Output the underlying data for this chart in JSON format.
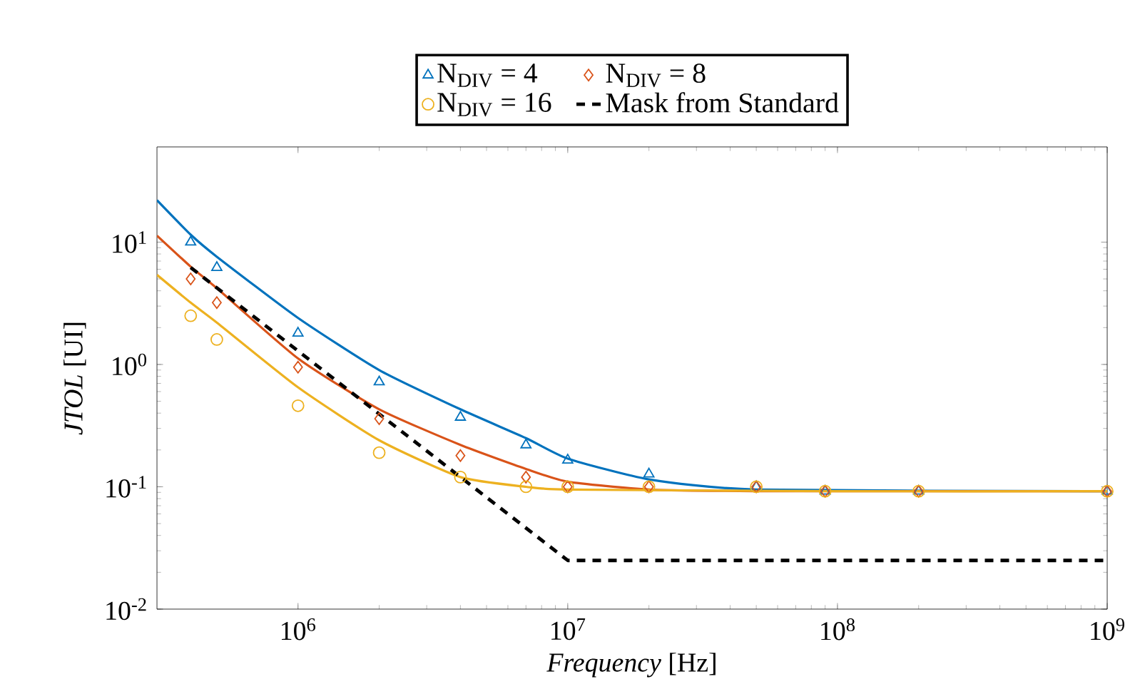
{
  "chart_data": {
    "type": "line",
    "xlabel": "*Frequency* [Hz]",
    "ylabel": "*JTOL* [UI]",
    "log": "xy",
    "legend": "top",
    "grid": false,
    "xlim": [
      300000,
      1000000000
    ],
    "ylim": [
      0.01,
      60
    ],
    "xticks": [
      {
        "value": 1000000,
        "label": "10$^{6}$"
      },
      {
        "value": 10000000,
        "label": "10$^{7}$"
      },
      {
        "value": 100000000,
        "label": "10$^{8}$"
      },
      {
        "value": 1000000000,
        "label": "10$^{9}$"
      }
    ],
    "yticks": [
      {
        "value": 0.01,
        "label": "10$^{-2}$"
      },
      {
        "value": 0.1,
        "label": "10$^{-1}$"
      },
      {
        "value": 1,
        "label": "10$^{0}$"
      },
      {
        "value": 10,
        "label": "10$^{1}$"
      }
    ],
    "series": [
      {
        "type": "scatter",
        "name": "N$_{DIV}$ = 4",
        "color": "#0072bd",
        "marker": "triangle",
        "x": [
          400000,
          500000,
          1000000,
          2000000,
          4000000,
          7000000,
          10000000,
          20000000,
          50000000,
          90000000,
          200000000,
          1000000000
        ],
        "values": [
          10,
          6.2,
          1.8,
          0.72,
          0.37,
          0.22,
          0.165,
          0.127,
          0.1,
          0.092,
          0.092,
          0.092
        ]
      },
      {
        "type": "scatter",
        "name": "N$_{DIV}$ = 8",
        "color": "#d95319",
        "marker": "diamond",
        "x": [
          400000,
          500000,
          1000000,
          2000000,
          4000000,
          7000000,
          10000000,
          20000000,
          50000000,
          90000000,
          200000000,
          1000000000
        ],
        "values": [
          5.0,
          3.2,
          0.95,
          0.36,
          0.18,
          0.12,
          0.1,
          0.1,
          0.1,
          0.092,
          0.092,
          0.092
        ]
      },
      {
        "type": "scatter",
        "name": "N$_{DIV}$ = 16",
        "color": "#edb120",
        "marker": "circle",
        "x": [
          400000,
          500000,
          1000000,
          2000000,
          4000000,
          7000000,
          10000000,
          20000000,
          50000000,
          90000000,
          200000000,
          1000000000
        ],
        "values": [
          2.5,
          1.6,
          0.46,
          0.19,
          0.12,
          0.1,
          0.1,
          0.1,
          0.1,
          0.092,
          0.092,
          0.092
        ]
      },
      {
        "type": "line",
        "color": "#0072bd",
        "line_style": "solid",
        "x": [
          300000,
          400000,
          500000,
          1000000,
          2000000,
          4000000,
          7000000,
          10000000,
          20000000,
          50000000,
          100000000,
          1000000000
        ],
        "values": [
          22,
          11.5,
          7.6,
          2.4,
          0.9,
          0.43,
          0.25,
          0.17,
          0.115,
          0.095,
          null,
          0.092
        ]
      },
      {
        "type": "line",
        "color": "#d95319",
        "line_style": "solid",
        "x": [
          300000,
          400000,
          500000,
          1000000,
          2000000,
          4000000,
          7000000,
          10000000,
          20000000,
          50000000,
          100000000,
          1000000000
        ],
        "values": [
          11.3,
          6.3,
          4.2,
          1.12,
          0.43,
          0.22,
          0.14,
          0.11,
          0.095,
          0.092,
          0.092,
          0.092
        ]
      },
      {
        "type": "line",
        "color": "#edb120",
        "line_style": "solid",
        "x": [
          300000,
          400000,
          500000,
          1000000,
          2000000,
          4000000,
          7000000,
          10000000,
          100000000,
          1000000000
        ],
        "values": [
          5.4,
          3.2,
          2.2,
          0.65,
          0.24,
          0.12,
          0.1,
          0.095,
          0.092,
          0.092
        ]
      },
      {
        "type": "line",
        "name": "Mask from Standard",
        "color": "#000000",
        "line_style": "dashed",
        "x": [
          400000,
          10000000,
          1000000000
        ],
        "values": [
          6.2,
          0.025,
          0.025
        ]
      }
    ]
  }
}
